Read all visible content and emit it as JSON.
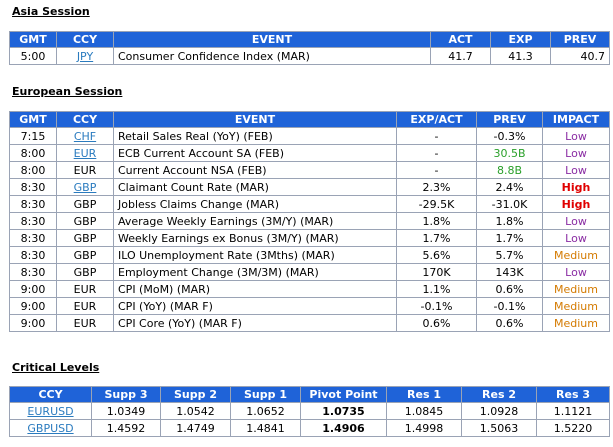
{
  "asia": {
    "title": "Asia Session",
    "headers": [
      "GMT",
      "CCY",
      "EVENT",
      "ACT",
      "EXP",
      "PREV"
    ],
    "rows": [
      {
        "gmt": "5:00",
        "ccy": "JPY",
        "ccy_link": true,
        "event": "Consumer Confidence Index (MAR)",
        "act": "41.7",
        "exp": "41.3",
        "prev": "40.7"
      }
    ]
  },
  "europe": {
    "title": "European Session",
    "headers": [
      "GMT",
      "CCY",
      "EVENT",
      "EXP/ACT",
      "PREV",
      "IMPACT"
    ],
    "rows": [
      {
        "gmt": "7:15",
        "ccy": "CHF",
        "ccy_link": true,
        "event": "Retail Sales Real (YoY) (FEB)",
        "expact": "-",
        "prev": "-0.3%",
        "prev_green": false,
        "impact": "Low"
      },
      {
        "gmt": "8:00",
        "ccy": "EUR",
        "ccy_link": true,
        "event": "ECB Current Account SA (FEB)",
        "expact": "-",
        "prev": "30.5B",
        "prev_green": true,
        "impact": "Low"
      },
      {
        "gmt": "8:00",
        "ccy": "EUR",
        "ccy_link": false,
        "event": "Current Account NSA (FEB)",
        "expact": "-",
        "prev": "8.8B",
        "prev_green": true,
        "impact": "Low"
      },
      {
        "gmt": "8:30",
        "ccy": "GBP",
        "ccy_link": true,
        "event": "Claimant Count Rate (MAR)",
        "expact": "2.3%",
        "prev": "2.4%",
        "prev_green": false,
        "impact": "High"
      },
      {
        "gmt": "8:30",
        "ccy": "GBP",
        "ccy_link": false,
        "event": "Jobless Claims Change (MAR)",
        "expact": "-29.5K",
        "prev": "-31.0K",
        "prev_green": false,
        "impact": "High"
      },
      {
        "gmt": "8:30",
        "ccy": "GBP",
        "ccy_link": false,
        "event": "Average Weekly Earnings (3M/Y) (MAR)",
        "expact": "1.8%",
        "prev": "1.8%",
        "prev_green": false,
        "impact": "Low"
      },
      {
        "gmt": "8:30",
        "ccy": "GBP",
        "ccy_link": false,
        "event": "Weekly Earnings ex Bonus (3M/Y) (MAR)",
        "expact": "1.7%",
        "prev": "1.7%",
        "prev_green": false,
        "impact": "Low"
      },
      {
        "gmt": "8:30",
        "ccy": "GBP",
        "ccy_link": false,
        "event": "ILO Unemployment Rate (3Mths) (MAR)",
        "expact": "5.6%",
        "prev": "5.7%",
        "prev_green": false,
        "impact": "Medium"
      },
      {
        "gmt": "8:30",
        "ccy": "GBP",
        "ccy_link": false,
        "event": "Employment Change (3M/3M) (MAR)",
        "expact": "170K",
        "prev": "143K",
        "prev_green": false,
        "impact": "Low"
      },
      {
        "gmt": "9:00",
        "ccy": "EUR",
        "ccy_link": false,
        "event": "CPI (MoM) (MAR)",
        "expact": "1.1%",
        "prev": "0.6%",
        "prev_green": false,
        "impact": "Medium"
      },
      {
        "gmt": "9:00",
        "ccy": "EUR",
        "ccy_link": false,
        "event": "CPI (YoY) (MAR F)",
        "expact": "-0.1%",
        "prev": "-0.1%",
        "prev_green": false,
        "impact": "Medium"
      },
      {
        "gmt": "9:00",
        "ccy": "EUR",
        "ccy_link": false,
        "event": "CPI Core (YoY) (MAR F)",
        "expact": "0.6%",
        "prev": "0.6%",
        "prev_green": false,
        "impact": "Medium"
      }
    ]
  },
  "levels": {
    "title": "Critical Levels",
    "headers": [
      "CCY",
      "Supp 3",
      "Supp 2",
      "Supp 1",
      "Pivot Point",
      "Res 1",
      "Res 2",
      "Res 3"
    ],
    "rows": [
      {
        "ccy": "EURUSD",
        "s3": "1.0349",
        "s2": "1.0542",
        "s1": "1.0652",
        "pp": "1.0735",
        "r1": "1.0845",
        "r2": "1.0928",
        "r3": "1.1121"
      },
      {
        "ccy": "GBPUSD",
        "s3": "1.4592",
        "s2": "1.4749",
        "s1": "1.4841",
        "pp": "1.4906",
        "r1": "1.4998",
        "r2": "1.5063",
        "r3": "1.5220"
      }
    ]
  },
  "colors": {
    "header_bg": "#1f63d8",
    "link": "#2a7bbf",
    "low": "#8a2ca3",
    "medium": "#d47a00",
    "high": "#e00000",
    "green": "#2aa02a"
  }
}
